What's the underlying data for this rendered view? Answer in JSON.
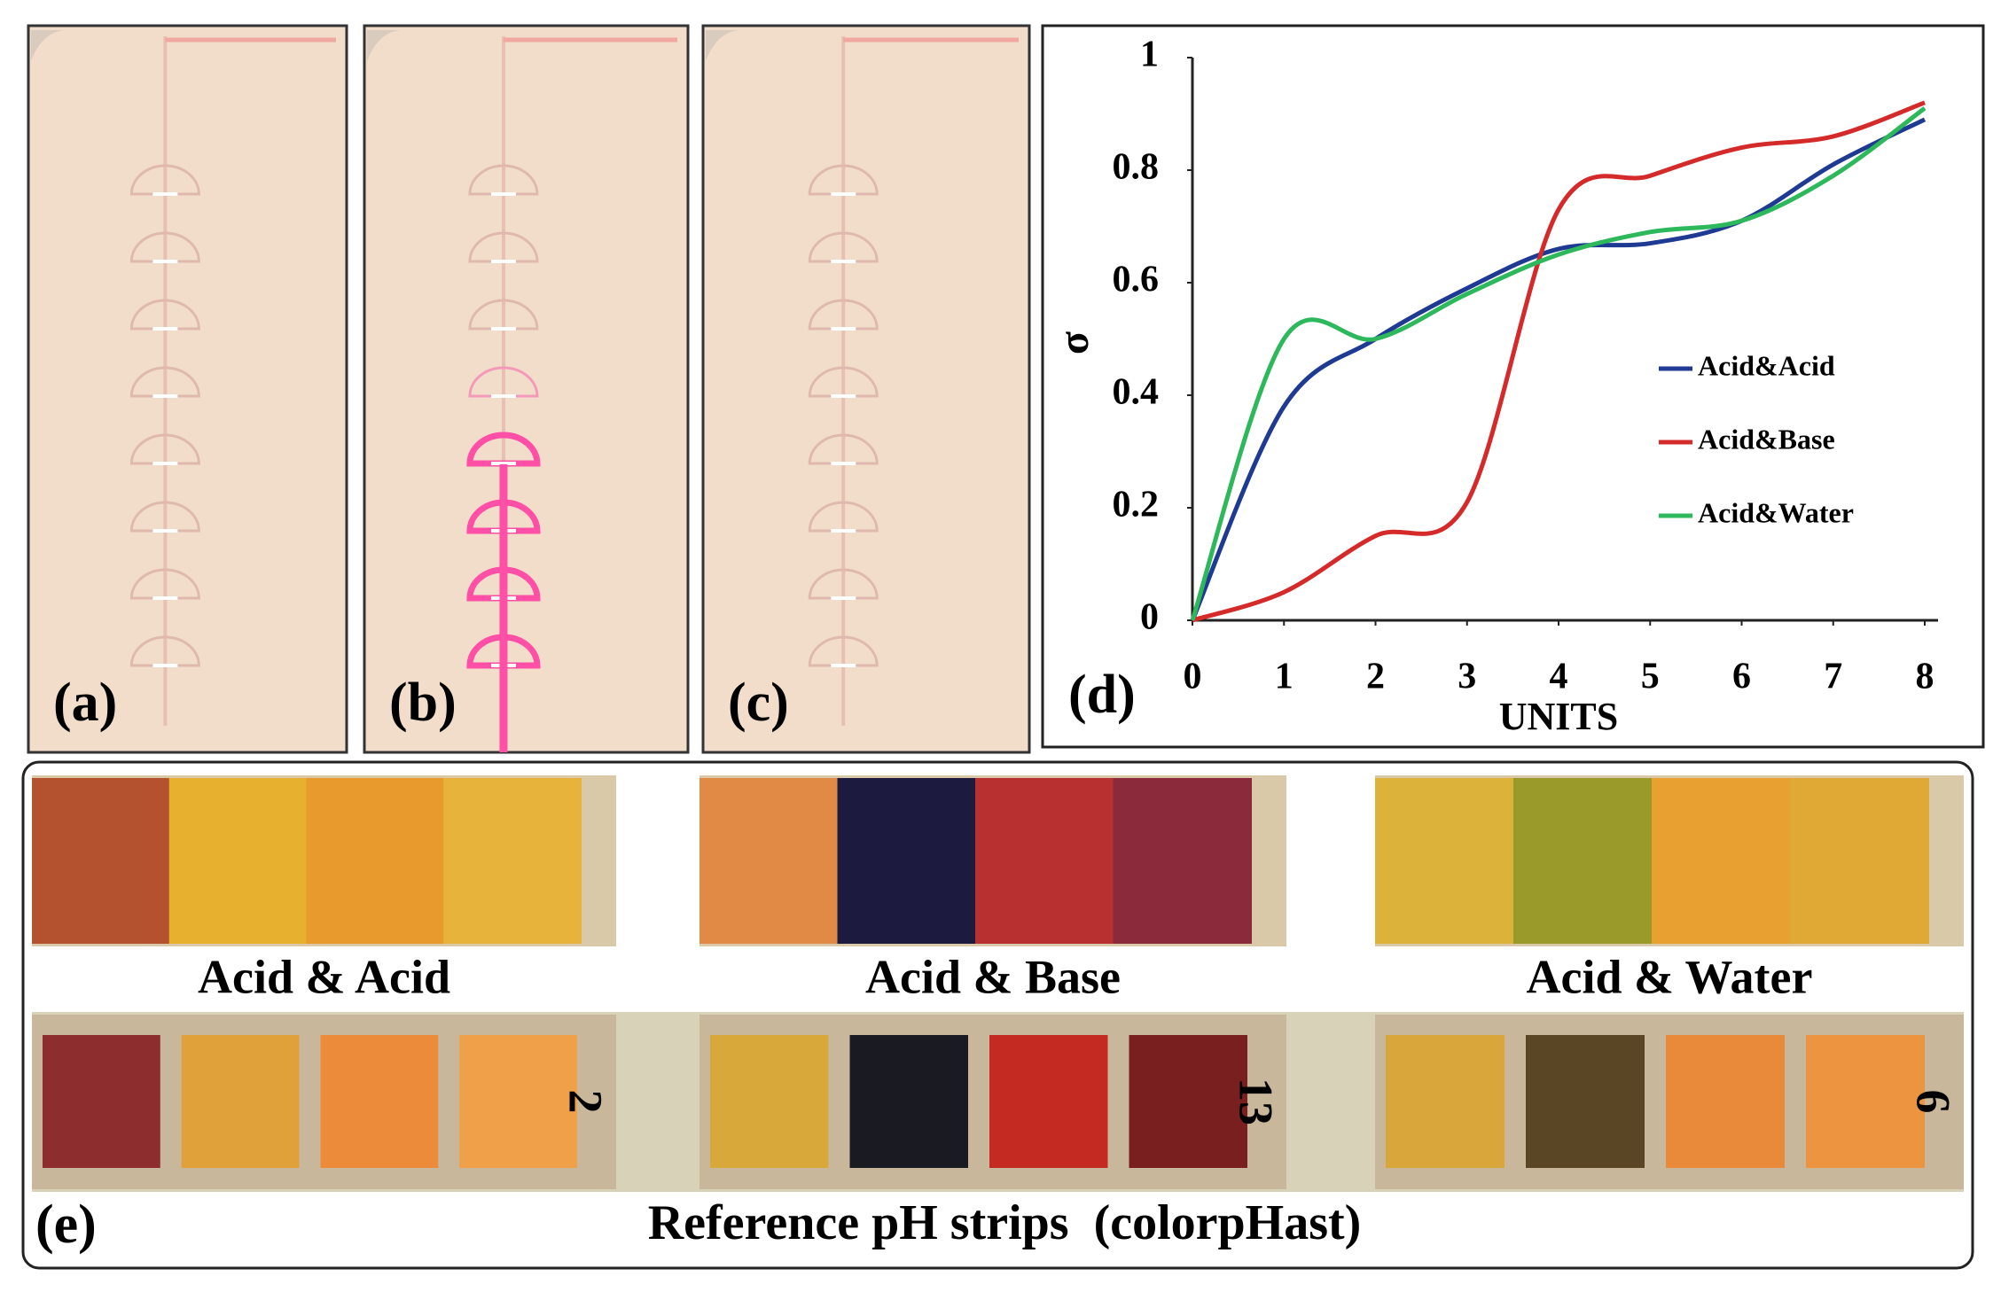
{
  "panels": [
    {
      "label": "(a)"
    },
    {
      "label": "(b)"
    },
    {
      "label": "(c)"
    }
  ],
  "chart_data": {
    "type": "line",
    "label": "(d)",
    "x_label": "UNITS",
    "y_label": "σ",
    "x": [
      0,
      1,
      2,
      3,
      4,
      5,
      6,
      7,
      8
    ],
    "xlim": [
      0,
      8
    ],
    "xticks": [
      0,
      1,
      2,
      3,
      4,
      5,
      6,
      7,
      8
    ],
    "ylim": [
      0,
      1
    ],
    "yticks": [
      0,
      0.2,
      0.4,
      0.6,
      0.8,
      1
    ],
    "grid": false,
    "legend": "right",
    "smooth": true,
    "series": [
      {
        "name": "Acid&Acid",
        "color": "#1f3a93",
        "values": [
          0,
          0.38,
          0.5,
          0.59,
          0.66,
          0.67,
          0.71,
          0.81,
          0.89
        ]
      },
      {
        "name": "Acid&Base",
        "color": "#d42a2a",
        "values": [
          0,
          0.05,
          0.15,
          0.21,
          0.73,
          0.79,
          0.84,
          0.86,
          0.92
        ]
      },
      {
        "name": "Acid&Water",
        "color": "#2db85b",
        "values": [
          0,
          0.5,
          0.5,
          0.58,
          0.65,
          0.69,
          0.71,
          0.79,
          0.91
        ]
      }
    ]
  },
  "strips": {
    "label": "(e)",
    "names": [
      "Acid & Acid",
      "Acid & Base",
      "Acid & Water"
    ],
    "reference_numbers": [
      "2",
      "13",
      "6"
    ],
    "caption": "Reference pH strips  (colorpHast)"
  }
}
